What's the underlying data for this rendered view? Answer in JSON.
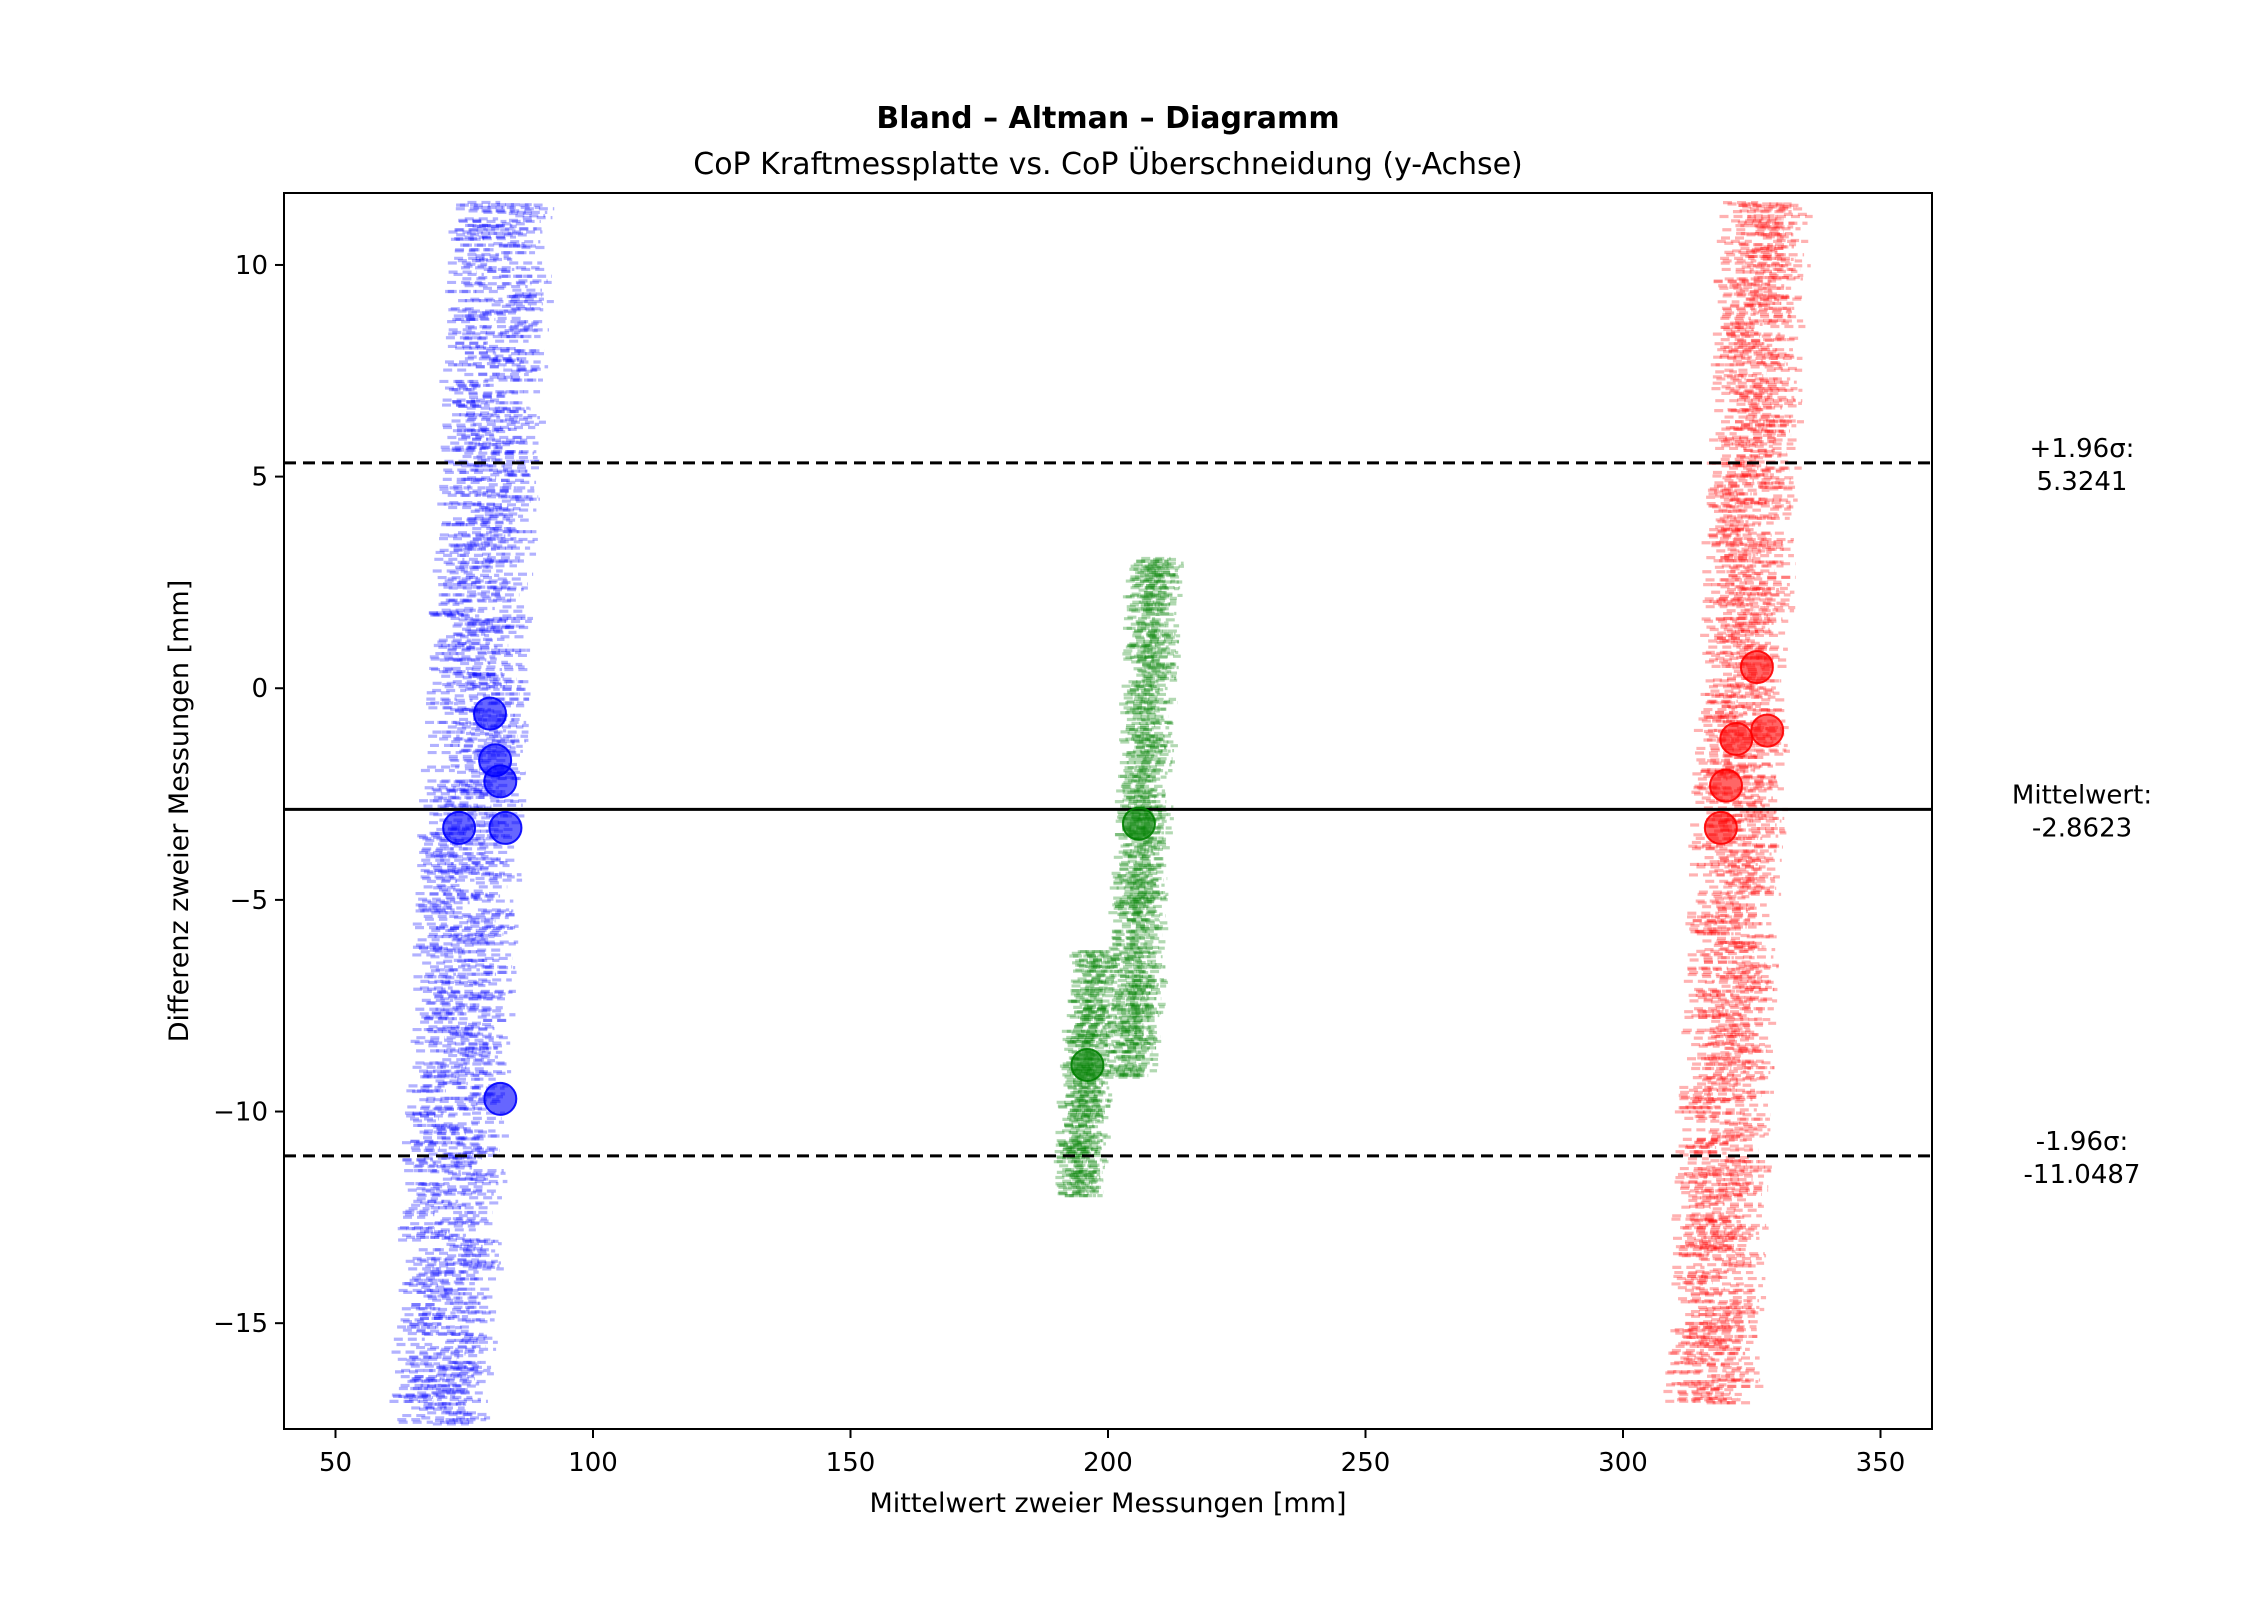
{
  "chart_data": {
    "type": "scatter",
    "title": "Bland – Altman – Diagramm",
    "subtitle": "CoP Kraftmessplatte vs. CoP Überschneidung (y-Achse)",
    "xlabel": "Mittelwert zweier Messungen [mm]",
    "ylabel": "Differenz zweier Messungen [mm]",
    "xlim": [
      40,
      360
    ],
    "ylim": [
      -17.5,
      11.7
    ],
    "xticks": [
      50,
      100,
      150,
      200,
      250,
      300,
      350
    ],
    "yticks": [
      -15,
      -10,
      -5,
      0,
      5,
      10
    ],
    "ytick_labels": [
      "−15",
      "−10",
      "−5",
      "0",
      "5",
      "10"
    ],
    "grid": false,
    "reference_lines": [
      {
        "name": "upper",
        "value": 5.3241,
        "style": "dashed",
        "label_line1": "+1.96σ:",
        "label_line2": "5.3241"
      },
      {
        "name": "mean",
        "value": -2.8623,
        "style": "solid",
        "label_line1": "Mittelwert:",
        "label_line2": "-2.8623"
      },
      {
        "name": "lower",
        "value": -11.0487,
        "style": "dashed",
        "label_line1": "-1.96σ:",
        "label_line2": "-11.0487"
      }
    ],
    "series": [
      {
        "color": "#0000ff",
        "points": [
          [
            74,
            -3.3
          ],
          [
            80,
            -0.6
          ],
          [
            81,
            -1.7
          ],
          [
            82,
            -2.2
          ],
          [
            83,
            -3.3
          ],
          [
            82,
            -9.7
          ]
        ],
        "streaks": [
          {
            "x_range": [
              63,
              90
            ],
            "y_range": [
              -17.4,
              11.5
            ]
          }
        ]
      },
      {
        "color": "#008000",
        "points": [
          [
            196,
            -8.9
          ],
          [
            206,
            -3.2
          ]
        ],
        "streaks": [
          {
            "x_range": [
              192,
              200
            ],
            "y_range": [
              -12.0,
              -6.2
            ]
          },
          {
            "x_range": [
              202,
              212
            ],
            "y_range": [
              -9.2,
              3.1
            ]
          }
        ]
      },
      {
        "color": "#ff0000",
        "points": [
          [
            326,
            0.5
          ],
          [
            328,
            -1.0
          ],
          [
            322,
            -1.2
          ],
          [
            320,
            -2.3
          ],
          [
            319,
            -3.3
          ]
        ],
        "streaks": [
          {
            "x_range": [
              311,
              334
            ],
            "y_range": [
              -16.9,
              11.5
            ]
          }
        ]
      }
    ]
  }
}
